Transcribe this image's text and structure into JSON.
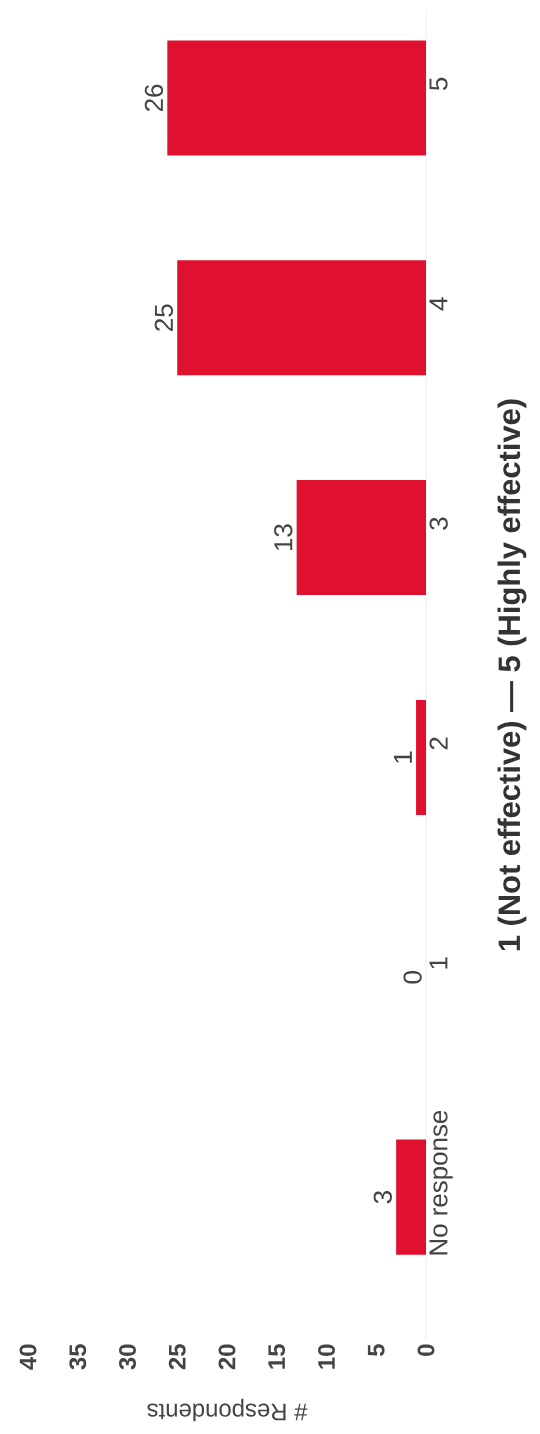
{
  "chart_data": {
    "type": "bar",
    "orientation": "horizontal",
    "ylabel": "1 (Not effective) — 5 (Highly effective)",
    "xlabel": "# Respondents",
    "categories": [
      "5",
      "4",
      "3",
      "2",
      "1",
      "No response"
    ],
    "values": [
      26,
      25,
      13,
      1,
      0,
      3
    ],
    "color": "#e0102f",
    "xlim": [
      40,
      0
    ],
    "xticks": [
      40,
      35,
      30,
      25,
      20,
      15,
      10,
      5,
      0
    ],
    "data_labels": true,
    "grid": false
  }
}
